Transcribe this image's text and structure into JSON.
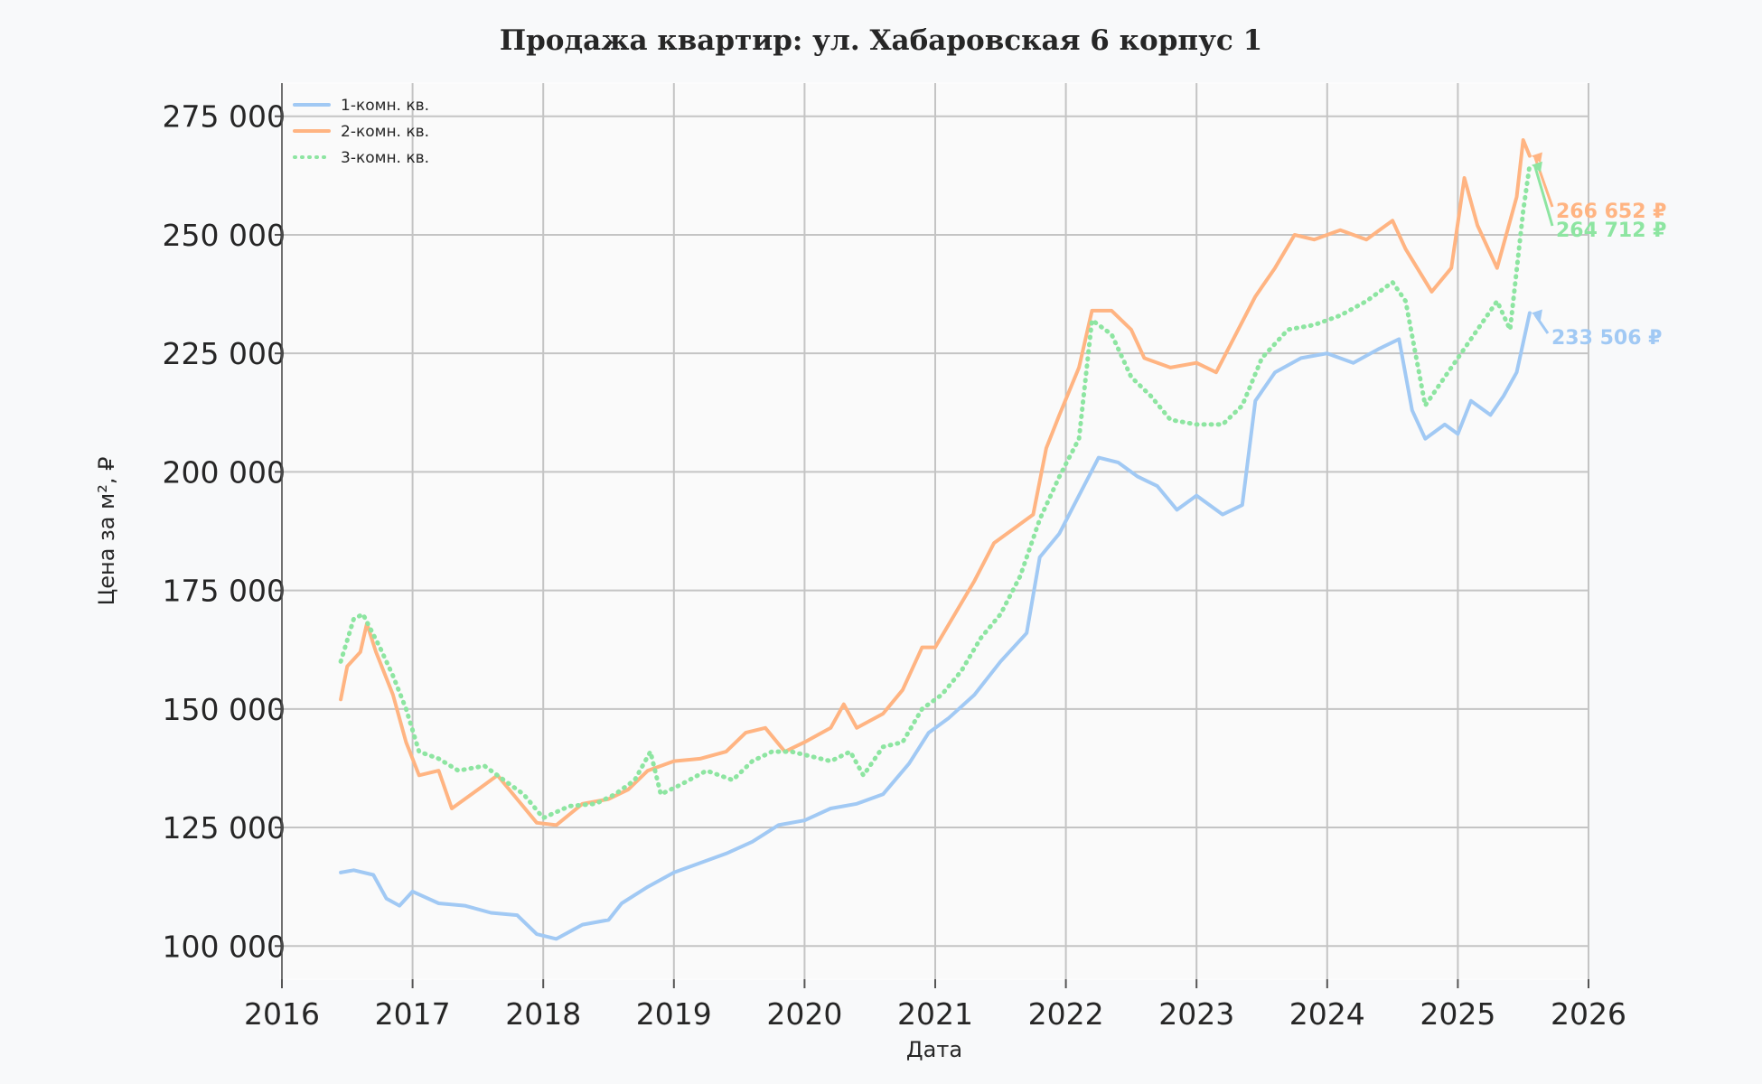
{
  "chart_data": {
    "type": "line",
    "title": "Продажа квартир: ул. Хабаровская 6 корпус 1",
    "xlabel": "Дата",
    "ylabel": "Цена за м², ₽",
    "x_range": [
      2016,
      2026
    ],
    "ylim": [
      93000,
      282000
    ],
    "x_ticks": [
      "2016",
      "2017",
      "2018",
      "2019",
      "2020",
      "2021",
      "2022",
      "2023",
      "2024",
      "2025",
      "2026"
    ],
    "y_ticks": [
      {
        "value": 100000,
        "label": "100 000"
      },
      {
        "value": 125000,
        "label": "125 000"
      },
      {
        "value": 150000,
        "label": "150 000"
      },
      {
        "value": 175000,
        "label": "175 000"
      },
      {
        "value": 200000,
        "label": "200 000"
      },
      {
        "value": 225000,
        "label": "225 000"
      },
      {
        "value": 250000,
        "label": "250 000"
      },
      {
        "value": 275000,
        "label": "275 000"
      }
    ],
    "grid": true,
    "legend_position": "top-left",
    "series": [
      {
        "name": "1-комн. кв.",
        "color": "#a1c9f4",
        "style": "solid",
        "annotation": "233 506 ₽",
        "last_value": 233506,
        "points": [
          [
            2016.45,
            115500
          ],
          [
            2016.55,
            116000
          ],
          [
            2016.7,
            115000
          ],
          [
            2016.8,
            110000
          ],
          [
            2016.9,
            108500
          ],
          [
            2017.0,
            111500
          ],
          [
            2017.2,
            109000
          ],
          [
            2017.4,
            108500
          ],
          [
            2017.6,
            107000
          ],
          [
            2017.8,
            106500
          ],
          [
            2017.95,
            102500
          ],
          [
            2018.1,
            101500
          ],
          [
            2018.3,
            104500
          ],
          [
            2018.5,
            105500
          ],
          [
            2018.6,
            109000
          ],
          [
            2018.8,
            112500
          ],
          [
            2019.0,
            115500
          ],
          [
            2019.2,
            117500
          ],
          [
            2019.4,
            119500
          ],
          [
            2019.6,
            122000
          ],
          [
            2019.8,
            125500
          ],
          [
            2020.0,
            126500
          ],
          [
            2020.2,
            129000
          ],
          [
            2020.4,
            130000
          ],
          [
            2020.6,
            132000
          ],
          [
            2020.8,
            138500
          ],
          [
            2020.95,
            145000
          ],
          [
            2021.1,
            148000
          ],
          [
            2021.3,
            153000
          ],
          [
            2021.5,
            160000
          ],
          [
            2021.7,
            166000
          ],
          [
            2021.8,
            182000
          ],
          [
            2021.95,
            187000
          ],
          [
            2022.1,
            195000
          ],
          [
            2022.25,
            203000
          ],
          [
            2022.4,
            202000
          ],
          [
            2022.55,
            199000
          ],
          [
            2022.7,
            197000
          ],
          [
            2022.85,
            192000
          ],
          [
            2023.0,
            195000
          ],
          [
            2023.2,
            191000
          ],
          [
            2023.35,
            193000
          ],
          [
            2023.45,
            215000
          ],
          [
            2023.6,
            221000
          ],
          [
            2023.8,
            224000
          ],
          [
            2024.0,
            225000
          ],
          [
            2024.2,
            223000
          ],
          [
            2024.4,
            226000
          ],
          [
            2024.55,
            228000
          ],
          [
            2024.65,
            213000
          ],
          [
            2024.75,
            207000
          ],
          [
            2024.9,
            210000
          ],
          [
            2025.0,
            208000
          ],
          [
            2025.1,
            215000
          ],
          [
            2025.25,
            212000
          ],
          [
            2025.35,
            216000
          ],
          [
            2025.45,
            221000
          ],
          [
            2025.55,
            233506
          ]
        ]
      },
      {
        "name": "2-комн. кв.",
        "color": "#ffb482",
        "style": "solid",
        "annotation": "266 652 ₽",
        "last_value": 266652,
        "points": [
          [
            2016.45,
            152000
          ],
          [
            2016.5,
            159000
          ],
          [
            2016.6,
            162000
          ],
          [
            2016.65,
            168000
          ],
          [
            2016.72,
            162000
          ],
          [
            2016.85,
            153000
          ],
          [
            2016.95,
            143000
          ],
          [
            2017.05,
            136000
          ],
          [
            2017.2,
            137000
          ],
          [
            2017.3,
            129000
          ],
          [
            2017.5,
            133000
          ],
          [
            2017.65,
            136000
          ],
          [
            2017.8,
            131000
          ],
          [
            2017.95,
            126000
          ],
          [
            2018.1,
            125500
          ],
          [
            2018.3,
            130000
          ],
          [
            2018.5,
            131000
          ],
          [
            2018.65,
            133000
          ],
          [
            2018.8,
            137000
          ],
          [
            2019.0,
            139000
          ],
          [
            2019.2,
            139500
          ],
          [
            2019.4,
            141000
          ],
          [
            2019.55,
            145000
          ],
          [
            2019.7,
            146000
          ],
          [
            2019.85,
            141000
          ],
          [
            2020.0,
            143000
          ],
          [
            2020.2,
            146000
          ],
          [
            2020.3,
            151000
          ],
          [
            2020.4,
            146000
          ],
          [
            2020.6,
            149000
          ],
          [
            2020.75,
            154000
          ],
          [
            2020.9,
            163000
          ],
          [
            2021.0,
            163000
          ],
          [
            2021.15,
            170000
          ],
          [
            2021.3,
            177000
          ],
          [
            2021.45,
            185000
          ],
          [
            2021.6,
            188000
          ],
          [
            2021.75,
            191000
          ],
          [
            2021.85,
            205000
          ],
          [
            2021.95,
            212000
          ],
          [
            2022.1,
            222000
          ],
          [
            2022.2,
            234000
          ],
          [
            2022.35,
            234000
          ],
          [
            2022.5,
            230000
          ],
          [
            2022.6,
            224000
          ],
          [
            2022.8,
            222000
          ],
          [
            2023.0,
            223000
          ],
          [
            2023.15,
            221000
          ],
          [
            2023.3,
            229000
          ],
          [
            2023.45,
            237000
          ],
          [
            2023.6,
            243000
          ],
          [
            2023.75,
            250000
          ],
          [
            2023.9,
            249000
          ],
          [
            2024.1,
            251000
          ],
          [
            2024.3,
            249000
          ],
          [
            2024.5,
            253000
          ],
          [
            2024.6,
            247000
          ],
          [
            2024.8,
            238000
          ],
          [
            2024.95,
            243000
          ],
          [
            2025.05,
            262000
          ],
          [
            2025.15,
            252000
          ],
          [
            2025.3,
            243000
          ],
          [
            2025.45,
            258000
          ],
          [
            2025.5,
            270000
          ],
          [
            2025.55,
            266652
          ]
        ]
      },
      {
        "name": "3-комн. кв.",
        "color": "#8de5a1",
        "style": "dotted",
        "annotation": "264 712 ₽",
        "last_value": 264712,
        "points": [
          [
            2016.45,
            160000
          ],
          [
            2016.55,
            169000
          ],
          [
            2016.62,
            170000
          ],
          [
            2016.75,
            163000
          ],
          [
            2016.85,
            157000
          ],
          [
            2016.95,
            150000
          ],
          [
            2017.05,
            141000
          ],
          [
            2017.2,
            139500
          ],
          [
            2017.35,
            137000
          ],
          [
            2017.55,
            138000
          ],
          [
            2017.7,
            135000
          ],
          [
            2017.85,
            132000
          ],
          [
            2018.0,
            127000
          ],
          [
            2018.2,
            129500
          ],
          [
            2018.4,
            130000
          ],
          [
            2018.55,
            132000
          ],
          [
            2018.7,
            135000
          ],
          [
            2018.82,
            141000
          ],
          [
            2018.9,
            132000
          ],
          [
            2019.05,
            134000
          ],
          [
            2019.25,
            137000
          ],
          [
            2019.45,
            135000
          ],
          [
            2019.6,
            139000
          ],
          [
            2019.75,
            141000
          ],
          [
            2019.9,
            141000
          ],
          [
            2020.05,
            140000
          ],
          [
            2020.2,
            139000
          ],
          [
            2020.35,
            141000
          ],
          [
            2020.45,
            136000
          ],
          [
            2020.6,
            142000
          ],
          [
            2020.75,
            143000
          ],
          [
            2020.9,
            150000
          ],
          [
            2021.05,
            153000
          ],
          [
            2021.2,
            158000
          ],
          [
            2021.35,
            165000
          ],
          [
            2021.5,
            170000
          ],
          [
            2021.65,
            178000
          ],
          [
            2021.8,
            190000
          ],
          [
            2021.95,
            199000
          ],
          [
            2022.1,
            207000
          ],
          [
            2022.2,
            232000
          ],
          [
            2022.35,
            229000
          ],
          [
            2022.5,
            220000
          ],
          [
            2022.65,
            216000
          ],
          [
            2022.8,
            211000
          ],
          [
            2023.0,
            210000
          ],
          [
            2023.2,
            210000
          ],
          [
            2023.35,
            214000
          ],
          [
            2023.5,
            224000
          ],
          [
            2023.7,
            230000
          ],
          [
            2023.9,
            231000
          ],
          [
            2024.1,
            233000
          ],
          [
            2024.3,
            236000
          ],
          [
            2024.5,
            240000
          ],
          [
            2024.6,
            236000
          ],
          [
            2024.75,
            214000
          ],
          [
            2024.9,
            220000
          ],
          [
            2025.0,
            224000
          ],
          [
            2025.15,
            230000
          ],
          [
            2025.3,
            236000
          ],
          [
            2025.4,
            230000
          ],
          [
            2025.5,
            255000
          ],
          [
            2025.55,
            264712
          ]
        ]
      }
    ]
  }
}
